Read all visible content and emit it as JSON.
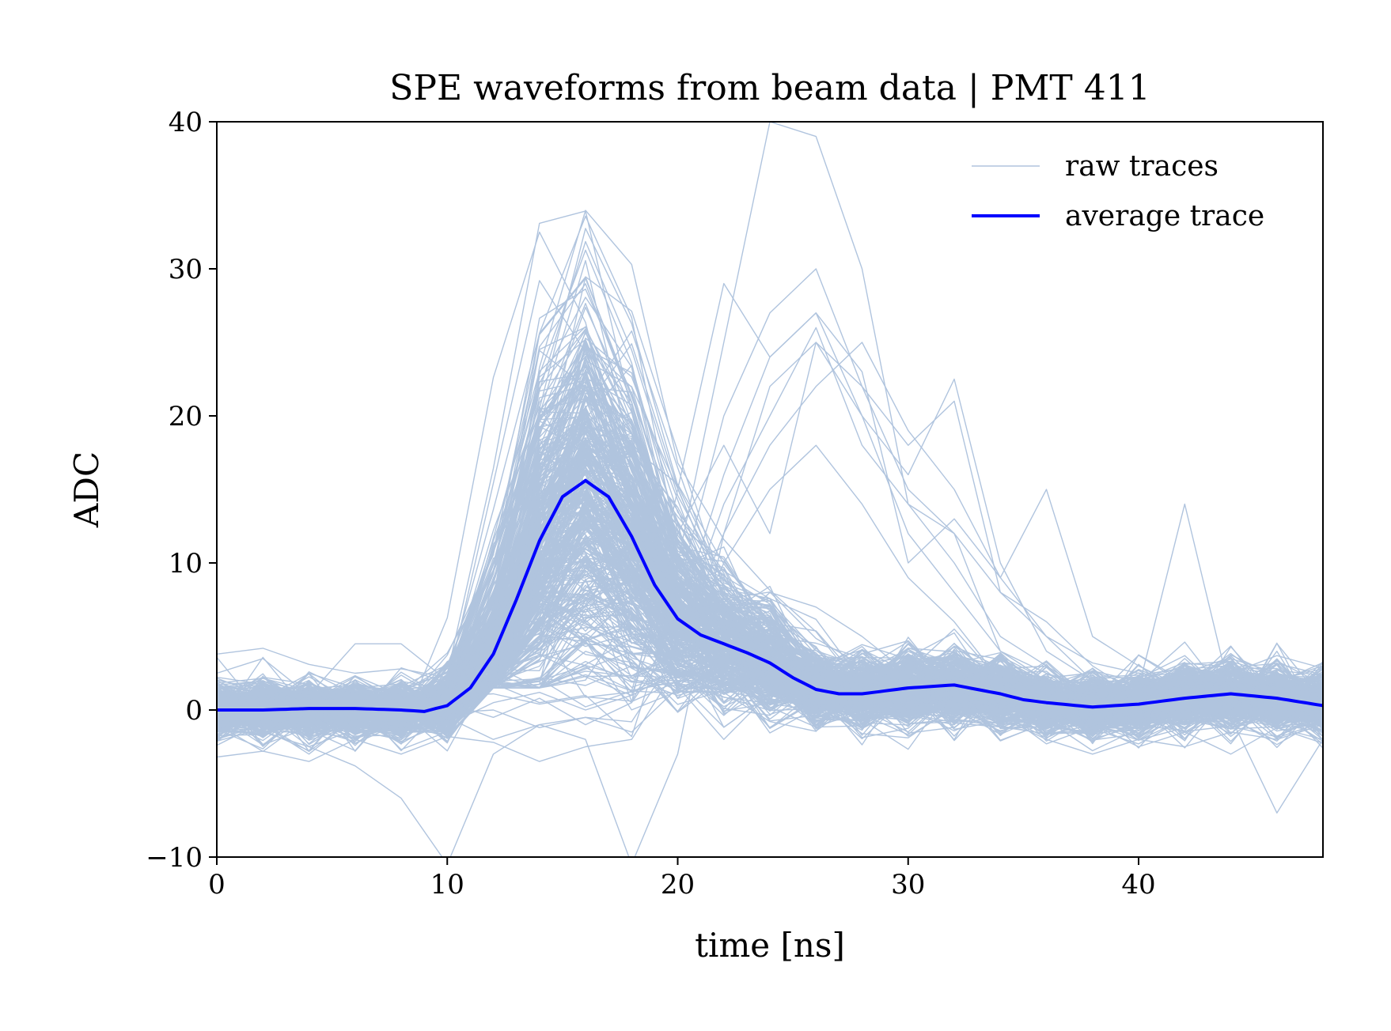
{
  "chart_data": {
    "type": "line",
    "title": "SPE waveforms from beam data | PMT 411",
    "xlabel": "time [ns]",
    "ylabel": "ADC",
    "xlim": [
      0,
      48
    ],
    "ylim": [
      -10,
      40
    ],
    "x_ticks": [
      0,
      10,
      20,
      30,
      40
    ],
    "y_ticks": [
      -10,
      0,
      10,
      20,
      30,
      40
    ],
    "x_tick_labels": [
      "0",
      "10",
      "20",
      "30",
      "40"
    ],
    "y_tick_labels": [
      "−10",
      "0",
      "10",
      "20",
      "30",
      "40"
    ],
    "grid": false,
    "legend_position": "top-right",
    "sample_step_ns": 2,
    "series": [
      {
        "name": "raw traces",
        "color": "#b0c4de",
        "representative_traces": [
          [
            3.8,
            4.2,
            3.1,
            2.5,
            2.8,
            2.2,
            3.0,
            1.5,
            2.4,
            1.3,
            12.0,
            18.0,
            12.0,
            25.0,
            22.0,
            18.0,
            21.0,
            8.0,
            5.0,
            3.2,
            2.5,
            1.0,
            2.2,
            0.5,
            1.2
          ],
          [
            -3.2,
            -2.8,
            -3.5,
            -2.0,
            -3.0,
            -1.8,
            -2.2,
            -3.5,
            -2.5,
            -2.0,
            3.0,
            10.0,
            15.0,
            18.0,
            14.0,
            9.0,
            6.0,
            2.0,
            1.0,
            -1.0,
            -2.5,
            -1.5,
            -3.0,
            -1.2,
            -2.0
          ],
          [
            1.0,
            -1.0,
            2.5,
            1.5,
            0.5,
            -1.5,
            1.8,
            0.5,
            1.0,
            -1.8,
            8.0,
            20.0,
            27.0,
            30.0,
            22.0,
            15.0,
            12.0,
            4.0,
            2.0,
            1.5,
            0.5,
            2.0,
            0.5,
            1.0,
            0.8
          ],
          [
            0.5,
            0.0,
            -0.5,
            1.0,
            0.0,
            0.5,
            -0.5,
            0.8,
            -1.0,
            0.5,
            5.0,
            14.0,
            20.0,
            26.0,
            18.0,
            14.0,
            10.0,
            5.0,
            3.0,
            1.0,
            2.0,
            1.2,
            0.8,
            1.5,
            1.0
          ],
          [
            2.5,
            3.5,
            1.0,
            4.5,
            4.5,
            2.0,
            1.5,
            2.0,
            3.0,
            0.5,
            15.0,
            29.0,
            24.0,
            27.0,
            23.0,
            10.0,
            13.0,
            9.0,
            15.0,
            5.0,
            3.0,
            1.5,
            2.5,
            2.0,
            3.0
          ],
          [
            -2.0,
            -1.0,
            -3.0,
            -0.5,
            -1.5,
            -0.5,
            -2.0,
            -1.0,
            -0.5,
            -1.5,
            1.5,
            5.0,
            8.0,
            7.0,
            5.0,
            2.5,
            1.0,
            -0.5,
            -2.0,
            -3.0,
            -2.0,
            -2.5,
            -1.5,
            -2.0,
            -1.0
          ],
          [
            1.5,
            2.0,
            0.5,
            0.0,
            1.0,
            -1.0,
            0.5,
            1.2,
            0.0,
            1.0,
            10.0,
            25.0,
            40.0,
            39.0,
            30.0,
            14.0,
            12.0,
            8.0,
            6.0,
            3.0,
            1.0,
            0.5,
            2.5,
            1.0,
            1.5
          ],
          [
            0.0,
            -1.5,
            -2.5,
            -3.8,
            -6.0,
            -10.5,
            -3.0,
            -1.0,
            -2.0,
            -10.5,
            -3.0,
            12.0,
            22.0,
            25.0,
            20.0,
            16.0,
            22.5,
            10.0,
            4.0,
            2.0,
            1.0,
            -1.0,
            -0.5,
            -7.0,
            -2.0
          ],
          [
            0.8,
            1.2,
            0.6,
            1.5,
            0.2,
            0.9,
            1.1,
            0.4,
            0.9,
            0.6,
            6.0,
            16.0,
            24.0,
            27.0,
            20.0,
            12.0,
            8.0,
            4.0,
            2.5,
            1.5,
            0.8,
            0.5,
            1.0,
            0.8,
            1.2
          ],
          [
            -1.0,
            -0.5,
            0.2,
            -0.8,
            0.5,
            -0.2,
            0.0,
            -1.2,
            -0.5,
            -0.8,
            4.0,
            12.0,
            18.0,
            22.0,
            25.0,
            19.0,
            15.0,
            9.0,
            5.0,
            2.0,
            1.5,
            14.0,
            1.0,
            -0.5,
            0.5
          ]
        ]
      },
      {
        "name": "average trace",
        "color": "#0000ff",
        "x": [
          0,
          2,
          4,
          6,
          8,
          9,
          10,
          11,
          12,
          13,
          14,
          15,
          16,
          17,
          18,
          19,
          20,
          21,
          22,
          23,
          24,
          25,
          26,
          27,
          28,
          30,
          32,
          34,
          35,
          36,
          38,
          40,
          42,
          44,
          46,
          48
        ],
        "y": [
          0.0,
          0.0,
          0.1,
          0.1,
          0.0,
          -0.1,
          0.3,
          1.5,
          3.8,
          7.5,
          11.5,
          14.5,
          15.6,
          14.5,
          11.8,
          8.5,
          6.2,
          5.1,
          4.5,
          3.9,
          3.2,
          2.2,
          1.4,
          1.1,
          1.1,
          1.5,
          1.7,
          1.1,
          0.7,
          0.5,
          0.2,
          0.4,
          0.8,
          1.1,
          0.8,
          0.3
        ]
      }
    ]
  }
}
